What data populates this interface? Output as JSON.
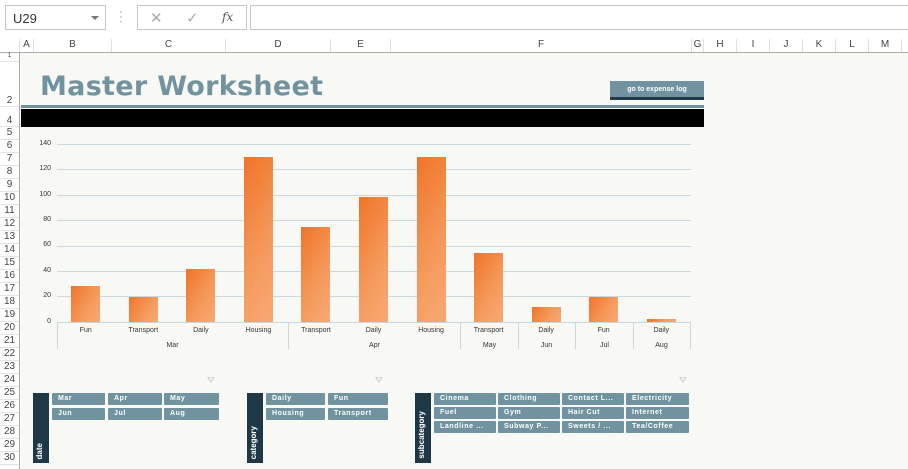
{
  "formula_bar": {
    "name_box": "U29",
    "cancel_icon": "✕",
    "enter_icon": "✓",
    "fx_label": "fx",
    "formula_value": ""
  },
  "columns": [
    "A",
    "B",
    "C",
    "D",
    "E",
    "F",
    "G",
    "H",
    "I",
    "J",
    "K",
    "L",
    "M"
  ],
  "rows": [
    "1",
    "2",
    "4",
    "5",
    "6",
    "7",
    "8",
    "9",
    "10",
    "11",
    "12",
    "13",
    "14",
    "15",
    "16",
    "17",
    "18",
    "19",
    "20",
    "21",
    "22",
    "23",
    "24",
    "25",
    "26",
    "27",
    "28",
    "29",
    "30"
  ],
  "sheet": {
    "title": "Master Worksheet",
    "goto_button": "go to expense log",
    "colors": {
      "accent": "#71939f",
      "dark": "#1f3848",
      "bar": "#f07428",
      "background": "#f8f8f4"
    }
  },
  "chart_data": {
    "type": "bar",
    "title": "",
    "xlabel": "",
    "ylabel": "",
    "ylim": [
      0,
      140
    ],
    "yticks": [
      0,
      20,
      40,
      60,
      80,
      100,
      120,
      140
    ],
    "grid": true,
    "legend": "none",
    "categories": [
      {
        "category": "Fun",
        "month": "Mar"
      },
      {
        "category": "Transport",
        "month": "Mar"
      },
      {
        "category": "Daily",
        "month": "Mar"
      },
      {
        "category": "Housing",
        "month": "Mar"
      },
      {
        "category": "Transport",
        "month": "Apr"
      },
      {
        "category": "Daily",
        "month": "Apr"
      },
      {
        "category": "Housing",
        "month": "Apr"
      },
      {
        "category": "Transport",
        "month": "May"
      },
      {
        "category": "Daily",
        "month": "Jun"
      },
      {
        "category": "Fun",
        "month": "Jul"
      },
      {
        "category": "Daily",
        "month": "Aug"
      }
    ],
    "values": [
      28,
      20,
      42,
      130,
      75,
      98,
      130,
      54,
      12,
      20,
      2
    ],
    "month_groups": [
      {
        "label": "Mar",
        "count": 4
      },
      {
        "label": "Apr",
        "count": 3
      },
      {
        "label": "May",
        "count": 1
      },
      {
        "label": "Jun",
        "count": 1
      },
      {
        "label": "Jul",
        "count": 1
      },
      {
        "label": "Aug",
        "count": 1
      }
    ]
  },
  "slicers": {
    "date": {
      "header": "date",
      "items": [
        "Mar",
        "Apr",
        "May",
        "Jun",
        "Jul",
        "Aug"
      ]
    },
    "category": {
      "header": "category",
      "items": [
        "Daily",
        "Fun",
        "Housing",
        "Transport"
      ]
    },
    "subcategory": {
      "header": "subcategory",
      "items": [
        "Cinema",
        "Clothing",
        "Contact L...",
        "Electricity",
        "Fuel",
        "Gym",
        "Hair Cut",
        "Internet",
        "Landline ...",
        "Subway P...",
        "Sweets / ...",
        "Tea/Coffee"
      ]
    }
  }
}
